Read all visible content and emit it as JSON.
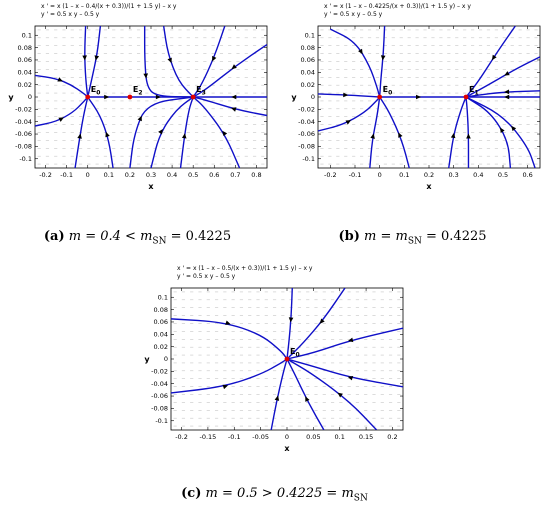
{
  "caption_a": {
    "label": "(a)",
    "text_before": "m = 0.4 < m",
    "sub": "SN",
    "text_after": " = 0.4225"
  },
  "caption_b": {
    "label": "(b)",
    "text_before": "m = m",
    "sub": "SN",
    "text_after": " = 0.4225"
  },
  "caption_c": {
    "label": "(c)",
    "text_before": "m = 0.5 > 0.4225 = m",
    "sub": "SN",
    "text_after": ""
  },
  "chart_data": [
    {
      "type": "scatter",
      "title": [
        "x ' = x (1 – x – 0.4/(x + 0.3))/(1 + 1.5 y) – x y",
        "y ' = 0.5 x y – 0.5 y"
      ],
      "xlabel": "x",
      "ylabel": "y",
      "xlim": [
        -0.25,
        0.85
      ],
      "ylim": [
        -0.115,
        0.115
      ],
      "xticks": [
        -0.2,
        -0.1,
        0,
        0.1,
        0.2,
        0.3,
        0.4,
        0.5,
        0.6,
        0.7,
        0.8
      ],
      "yticks": [
        -0.1,
        -0.08,
        -0.06,
        -0.04,
        -0.02,
        0,
        0.02,
        0.04,
        0.06,
        0.08,
        0.1
      ],
      "grid": false,
      "points": [
        {
          "label": "E0",
          "x": 0,
          "y": 0
        },
        {
          "label": "E2",
          "x": 0.2,
          "y": 0
        },
        {
          "label": "E3",
          "x": 0.5,
          "y": 0
        }
      ],
      "trajectories": [
        [
          [
            -0.25,
            0.035
          ],
          [
            -0.15,
            0.03
          ],
          [
            -0.08,
            0.02
          ],
          [
            -0.02,
            0.006
          ],
          [
            0,
            0
          ]
        ],
        [
          [
            -0.25,
            -0.047
          ],
          [
            -0.15,
            -0.04
          ],
          [
            -0.07,
            -0.025
          ],
          [
            -0.02,
            -0.008
          ],
          [
            0,
            0
          ]
        ],
        [
          [
            -0.06,
            -0.115
          ],
          [
            -0.04,
            -0.07
          ],
          [
            -0.02,
            -0.03
          ],
          [
            0,
            0
          ]
        ],
        [
          [
            -0.01,
            0.115
          ],
          [
            -0.015,
            0.07
          ],
          [
            -0.01,
            0.03
          ],
          [
            0,
            0
          ]
        ],
        [
          [
            0.06,
            0.115
          ],
          [
            0.045,
            0.07
          ],
          [
            0.02,
            0.03
          ],
          [
            0,
            0
          ]
        ],
        [
          [
            0.12,
            -0.115
          ],
          [
            0.1,
            -0.07
          ],
          [
            0.06,
            -0.03
          ],
          [
            0,
            0
          ]
        ],
        [
          [
            0,
            0
          ],
          [
            0.2,
            0
          ]
        ],
        [
          [
            0.2,
            0
          ],
          [
            0.5,
            0
          ]
        ],
        [
          [
            0.85,
            0
          ],
          [
            0.5,
            0
          ]
        ],
        [
          [
            0.27,
            0.115
          ],
          [
            0.27,
            0.06
          ],
          [
            0.28,
            0.015
          ],
          [
            0.33,
            0.001
          ],
          [
            0.5,
            0
          ]
        ],
        [
          [
            0.36,
            0.115
          ],
          [
            0.38,
            0.07
          ],
          [
            0.43,
            0.025
          ],
          [
            0.5,
            0
          ]
        ],
        [
          [
            0.65,
            0.115
          ],
          [
            0.6,
            0.065
          ],
          [
            0.54,
            0.02
          ],
          [
            0.5,
            0
          ]
        ],
        [
          [
            0.85,
            0.085
          ],
          [
            0.7,
            0.05
          ],
          [
            0.56,
            0.012
          ],
          [
            0.5,
            0
          ]
        ],
        [
          [
            0.85,
            -0.03
          ],
          [
            0.7,
            -0.02
          ],
          [
            0.56,
            -0.005
          ],
          [
            0.5,
            0
          ]
        ],
        [
          [
            0.3,
            -0.115
          ],
          [
            0.34,
            -0.06
          ],
          [
            0.42,
            -0.02
          ],
          [
            0.5,
            0
          ]
        ],
        [
          [
            0.44,
            -0.115
          ],
          [
            0.46,
            -0.06
          ],
          [
            0.48,
            -0.02
          ],
          [
            0.5,
            0
          ]
        ],
        [
          [
            0.2,
            -0.115
          ],
          [
            0.22,
            -0.06
          ],
          [
            0.28,
            -0.01
          ],
          [
            0.5,
            0
          ]
        ],
        [
          [
            0.72,
            -0.115
          ],
          [
            0.65,
            -0.06
          ],
          [
            0.55,
            -0.015
          ],
          [
            0.5,
            0
          ]
        ]
      ]
    },
    {
      "type": "scatter",
      "title": [
        "x ' = x (1 – x – 0.4225/(x + 0.3))/(1 + 1.5 y) – x y",
        "y ' = 0.5 x y – 0.5 y"
      ],
      "xlabel": "x",
      "ylabel": "y",
      "xlim": [
        -0.25,
        0.65
      ],
      "ylim": [
        -0.115,
        0.115
      ],
      "xticks": [
        -0.2,
        -0.1,
        0,
        0.1,
        0.2,
        0.3,
        0.4,
        0.5,
        0.6
      ],
      "yticks": [
        -0.1,
        -0.08,
        -0.06,
        -0.04,
        -0.02,
        0,
        0.02,
        0.04,
        0.06,
        0.08,
        0.1
      ],
      "grid": false,
      "points": [
        {
          "label": "E0",
          "x": 0,
          "y": 0
        },
        {
          "label": "E1",
          "x": 0.35,
          "y": 0
        }
      ],
      "trajectories": [
        [
          [
            -0.25,
            0.005
          ],
          [
            -0.12,
            0.003
          ],
          [
            -0.04,
            0.001
          ],
          [
            0,
            0
          ]
        ],
        [
          [
            -0.25,
            -0.055
          ],
          [
            -0.15,
            -0.045
          ],
          [
            -0.06,
            -0.025
          ],
          [
            -0.01,
            -0.005
          ],
          [
            0,
            0
          ]
        ],
        [
          [
            -0.2,
            0.11
          ],
          [
            -0.1,
            0.09
          ],
          [
            -0.04,
            0.05
          ],
          [
            -0.01,
            0.015
          ],
          [
            0,
            0
          ]
        ],
        [
          [
            0.02,
            0.115
          ],
          [
            0.015,
            0.07
          ],
          [
            0.005,
            0.03
          ],
          [
            0,
            0
          ]
        ],
        [
          [
            -0.04,
            -0.115
          ],
          [
            -0.03,
            -0.07
          ],
          [
            -0.01,
            -0.03
          ],
          [
            0,
            0
          ]
        ],
        [
          [
            0.12,
            -0.115
          ],
          [
            0.09,
            -0.07
          ],
          [
            0.04,
            -0.025
          ],
          [
            0,
            0
          ]
        ],
        [
          [
            0,
            0
          ],
          [
            0.35,
            0
          ]
        ],
        [
          [
            0.65,
            0
          ],
          [
            0.35,
            0
          ]
        ],
        [
          [
            0.55,
            0.115
          ],
          [
            0.48,
            0.075
          ],
          [
            0.4,
            0.025
          ],
          [
            0.35,
            0
          ]
        ],
        [
          [
            0.65,
            0.065
          ],
          [
            0.55,
            0.045
          ],
          [
            0.42,
            0.015
          ],
          [
            0.35,
            0
          ]
        ],
        [
          [
            0.28,
            -0.115
          ],
          [
            0.3,
            -0.06
          ],
          [
            0.33,
            -0.02
          ],
          [
            0.35,
            0
          ]
        ],
        [
          [
            0.36,
            -0.115
          ],
          [
            0.36,
            -0.06
          ],
          [
            0.355,
            -0.02
          ],
          [
            0.35,
            0
          ]
        ],
        [
          [
            0.53,
            -0.115
          ],
          [
            0.52,
            -0.07
          ],
          [
            0.45,
            -0.025
          ],
          [
            0.35,
            0
          ]
        ],
        [
          [
            0.63,
            -0.115
          ],
          [
            0.6,
            -0.08
          ],
          [
            0.5,
            -0.03
          ],
          [
            0.35,
            0
          ]
        ],
        [
          [
            0.65,
            0.01
          ],
          [
            0.5,
            0.008
          ],
          [
            0.4,
            0.003
          ],
          [
            0.35,
            0
          ]
        ]
      ]
    },
    {
      "type": "scatter",
      "title": [
        "x ' = x (1 – x – 0.5/(x + 0.3))/(1 + 1.5 y) – x y",
        "y ' = 0.5 x y – 0.5 y"
      ],
      "xlabel": "x",
      "ylabel": "y",
      "xlim": [
        -0.22,
        0.22
      ],
      "ylim": [
        -0.115,
        0.115
      ],
      "xticks": [
        -0.2,
        -0.15,
        -0.1,
        -0.05,
        0,
        0.05,
        0.1,
        0.15,
        0.2
      ],
      "yticks": [
        -0.1,
        -0.08,
        -0.06,
        -0.04,
        -0.02,
        0,
        0.02,
        0.04,
        0.06,
        0.08,
        0.1
      ],
      "grid": false,
      "points": [
        {
          "label": "E0",
          "x": 0,
          "y": 0
        }
      ],
      "trajectories": [
        [
          [
            -0.22,
            0.065
          ],
          [
            -0.12,
            0.06
          ],
          [
            -0.05,
            0.04
          ],
          [
            -0.01,
            0.012
          ],
          [
            0,
            0
          ]
        ],
        [
          [
            -0.22,
            -0.055
          ],
          [
            -0.12,
            -0.045
          ],
          [
            -0.05,
            -0.025
          ],
          [
            -0.01,
            -0.006
          ],
          [
            0,
            0
          ]
        ],
        [
          [
            0.01,
            0.115
          ],
          [
            0.008,
            0.07
          ],
          [
            0.004,
            0.03
          ],
          [
            0,
            0
          ]
        ],
        [
          [
            0.11,
            0.115
          ],
          [
            0.07,
            0.065
          ],
          [
            0.03,
            0.025
          ],
          [
            0,
            0
          ]
        ],
        [
          [
            0.22,
            0.05
          ],
          [
            0.12,
            0.03
          ],
          [
            0.05,
            0.01
          ],
          [
            0,
            0
          ]
        ],
        [
          [
            0.22,
            -0.045
          ],
          [
            0.12,
            -0.03
          ],
          [
            0.05,
            -0.012
          ],
          [
            0,
            0
          ]
        ],
        [
          [
            0.17,
            -0.115
          ],
          [
            0.12,
            -0.07
          ],
          [
            0.05,
            -0.025
          ],
          [
            0,
            0
          ]
        ],
        [
          [
            0.07,
            -0.115
          ],
          [
            0.04,
            -0.07
          ],
          [
            0.015,
            -0.025
          ],
          [
            0,
            0
          ]
        ],
        [
          [
            -0.03,
            -0.115
          ],
          [
            -0.02,
            -0.07
          ],
          [
            -0.008,
            -0.025
          ],
          [
            0,
            0
          ]
        ]
      ]
    }
  ]
}
